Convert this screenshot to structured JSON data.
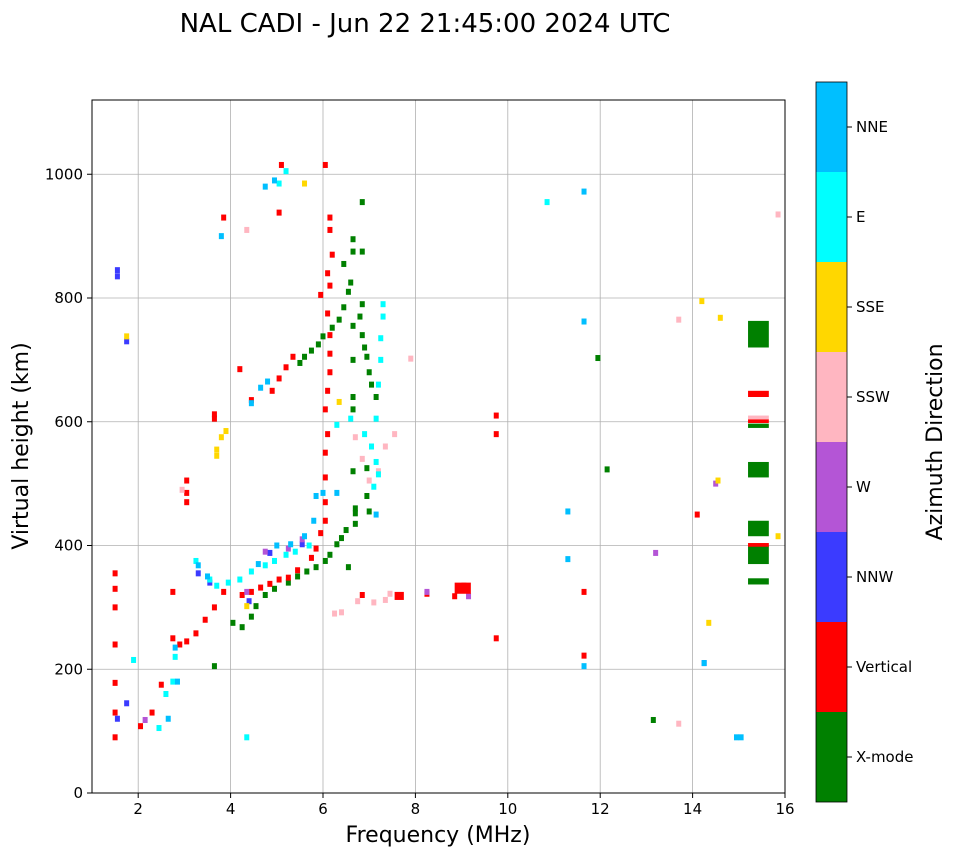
{
  "chart_data": {
    "type": "scatter",
    "title": "NAL CADI - Jun 22 21:45:00 2024 UTC",
    "xlabel": "Frequency (MHz)",
    "ylabel": "Virtual height (km)",
    "xlim": [
      1,
      16
    ],
    "ylim": [
      0,
      1120
    ],
    "xticks": [
      2,
      4,
      6,
      8,
      10,
      12,
      14,
      16
    ],
    "yticks": [
      0,
      200,
      400,
      600,
      800,
      1000
    ],
    "grid": true,
    "colorbar": {
      "label": "Azimuth Direction",
      "categories": [
        {
          "name": "X-mode",
          "color": "#008000"
        },
        {
          "name": "Vertical",
          "color": "#ff0000"
        },
        {
          "name": "NNW",
          "color": "#3b3bff"
        },
        {
          "name": "W",
          "color": "#b455d6"
        },
        {
          "name": "SSW",
          "color": "#ffb6c1"
        },
        {
          "name": "SSE",
          "color": "#ffd700"
        },
        {
          "name": "E",
          "color": "#00ffff"
        },
        {
          "name": "NNE",
          "color": "#00bfff"
        }
      ]
    },
    "series": [
      {
        "name": "X-mode",
        "points": [
          [
            3.65,
            205
          ],
          [
            4.05,
            275
          ],
          [
            4.25,
            268
          ],
          [
            4.45,
            285
          ],
          [
            4.55,
            302
          ],
          [
            4.75,
            320
          ],
          [
            4.95,
            330
          ],
          [
            5.25,
            340
          ],
          [
            5.45,
            350
          ],
          [
            5.65,
            358
          ],
          [
            5.85,
            365
          ],
          [
            6.05,
            375
          ],
          [
            6.15,
            385
          ],
          [
            6.3,
            402
          ],
          [
            6.4,
            412
          ],
          [
            6.5,
            425
          ],
          [
            6.55,
            365
          ],
          [
            5.5,
            695
          ],
          [
            5.6,
            705
          ],
          [
            5.75,
            715
          ],
          [
            5.9,
            725
          ],
          [
            6.0,
            738
          ],
          [
            6.2,
            752
          ],
          [
            6.35,
            765
          ],
          [
            6.45,
            785
          ],
          [
            6.55,
            810
          ],
          [
            6.6,
            825
          ],
          [
            6.45,
            855
          ],
          [
            6.65,
            875
          ],
          [
            6.65,
            895
          ],
          [
            6.85,
            955
          ],
          [
            6.85,
            875
          ],
          [
            6.85,
            790
          ],
          [
            6.8,
            770
          ],
          [
            6.65,
            755
          ],
          [
            6.85,
            740
          ],
          [
            6.9,
            720
          ],
          [
            6.65,
            700
          ],
          [
            6.95,
            705
          ],
          [
            7.0,
            680
          ],
          [
            7.05,
            660
          ],
          [
            7.15,
            640
          ],
          [
            6.65,
            640
          ],
          [
            6.65,
            620
          ],
          [
            6.65,
            520
          ],
          [
            6.95,
            525
          ],
          [
            6.95,
            480
          ],
          [
            6.7,
            452
          ],
          [
            6.7,
            435
          ],
          [
            6.7,
            460
          ],
          [
            7.0,
            455
          ],
          [
            13.15,
            118
          ],
          [
            12.15,
            523
          ],
          [
            11.95,
            703
          ]
        ]
      },
      {
        "name": "Vertical",
        "points": [
          [
            1.5,
            90
          ],
          [
            1.5,
            130
          ],
          [
            1.5,
            178
          ],
          [
            1.5,
            240
          ],
          [
            1.5,
            300
          ],
          [
            1.5,
            330
          ],
          [
            1.5,
            355
          ],
          [
            2.05,
            108
          ],
          [
            2.3,
            130
          ],
          [
            2.5,
            175
          ],
          [
            2.75,
            250
          ],
          [
            2.9,
            240
          ],
          [
            3.05,
            245
          ],
          [
            3.25,
            258
          ],
          [
            3.45,
            280
          ],
          [
            3.65,
            300
          ],
          [
            3.85,
            325
          ],
          [
            4.25,
            320
          ],
          [
            4.45,
            325
          ],
          [
            4.65,
            332
          ],
          [
            4.85,
            338
          ],
          [
            5.05,
            345
          ],
          [
            5.25,
            348
          ],
          [
            5.45,
            360
          ],
          [
            5.75,
            380
          ],
          [
            5.85,
            395
          ],
          [
            5.95,
            420
          ],
          [
            6.05,
            440
          ],
          [
            6.05,
            470
          ],
          [
            6.05,
            510
          ],
          [
            6.05,
            550
          ],
          [
            6.1,
            580
          ],
          [
            6.05,
            620
          ],
          [
            6.1,
            650
          ],
          [
            6.15,
            680
          ],
          [
            6.15,
            710
          ],
          [
            6.15,
            740
          ],
          [
            6.1,
            775
          ],
          [
            5.95,
            805
          ],
          [
            6.15,
            820
          ],
          [
            6.1,
            840
          ],
          [
            6.2,
            870
          ],
          [
            6.15,
            910
          ],
          [
            6.15,
            930
          ],
          [
            4.9,
            650
          ],
          [
            5.05,
            670
          ],
          [
            5.2,
            688
          ],
          [
            5.35,
            705
          ],
          [
            5.05,
            938
          ],
          [
            4.45,
            635
          ],
          [
            4.2,
            685
          ],
          [
            3.85,
            930
          ],
          [
            3.05,
            470
          ],
          [
            3.05,
            485
          ],
          [
            3.05,
            505
          ],
          [
            2.75,
            325
          ],
          [
            6.85,
            320
          ],
          [
            7.65,
            318
          ],
          [
            8.25,
            322
          ],
          [
            9.05,
            335
          ],
          [
            8.85,
            318
          ],
          [
            9.75,
            610
          ],
          [
            9.75,
            580
          ],
          [
            9.75,
            250
          ],
          [
            11.65,
            325
          ],
          [
            11.65,
            222
          ],
          [
            14.1,
            450
          ],
          [
            5.1,
            1015
          ],
          [
            6.05,
            1015
          ],
          [
            3.65,
            612
          ],
          [
            3.65,
            605
          ]
        ]
      },
      {
        "name": "NNW",
        "points": [
          [
            1.55,
            845
          ],
          [
            1.55,
            835
          ],
          [
            1.75,
            145
          ],
          [
            1.75,
            730
          ],
          [
            1.55,
            120
          ],
          [
            3.3,
            355
          ],
          [
            4.4,
            310
          ],
          [
            4.85,
            388
          ],
          [
            5.55,
            402
          ],
          [
            3.55,
            340
          ],
          [
            14.25,
            210
          ]
        ]
      },
      {
        "name": "W",
        "points": [
          [
            4.35,
            325
          ],
          [
            4.75,
            390
          ],
          [
            5.25,
            395
          ],
          [
            5.55,
            410
          ],
          [
            9.15,
            318
          ],
          [
            13.2,
            388
          ],
          [
            14.5,
            500
          ],
          [
            8.25,
            325
          ],
          [
            2.15,
            118
          ]
        ]
      },
      {
        "name": "SSW",
        "points": [
          [
            6.25,
            290
          ],
          [
            6.4,
            292
          ],
          [
            6.75,
            310
          ],
          [
            7.1,
            308
          ],
          [
            7.35,
            312
          ],
          [
            7.45,
            322
          ],
          [
            6.85,
            540
          ],
          [
            7.0,
            505
          ],
          [
            7.2,
            520
          ],
          [
            7.35,
            560
          ],
          [
            7.55,
            580
          ],
          [
            6.7,
            575
          ],
          [
            13.7,
            112
          ],
          [
            13.7,
            765
          ],
          [
            15.85,
            935
          ],
          [
            7.9,
            702
          ],
          [
            4.35,
            910
          ],
          [
            2.95,
            490
          ]
        ]
      },
      {
        "name": "SSE",
        "points": [
          [
            3.7,
            555
          ],
          [
            3.7,
            545
          ],
          [
            3.9,
            585
          ],
          [
            3.8,
            575
          ],
          [
            6.35,
            632
          ],
          [
            14.2,
            795
          ],
          [
            14.6,
            768
          ],
          [
            14.35,
            275
          ],
          [
            15.85,
            415
          ],
          [
            14.55,
            505
          ],
          [
            5.6,
            985
          ],
          [
            4.35,
            302
          ],
          [
            1.75,
            738
          ]
        ]
      },
      {
        "name": "E",
        "points": [
          [
            2.45,
            105
          ],
          [
            2.6,
            160
          ],
          [
            2.75,
            180
          ],
          [
            2.8,
            220
          ],
          [
            3.25,
            375
          ],
          [
            3.55,
            345
          ],
          [
            3.7,
            335
          ],
          [
            3.95,
            340
          ],
          [
            4.2,
            345
          ],
          [
            4.45,
            358
          ],
          [
            4.75,
            368
          ],
          [
            4.95,
            375
          ],
          [
            5.2,
            385
          ],
          [
            5.4,
            390
          ],
          [
            5.7,
            400
          ],
          [
            6.3,
            595
          ],
          [
            6.6,
            605
          ],
          [
            6.9,
            580
          ],
          [
            7.05,
            560
          ],
          [
            7.15,
            535
          ],
          [
            7.2,
            515
          ],
          [
            7.1,
            495
          ],
          [
            7.15,
            605
          ],
          [
            7.2,
            660
          ],
          [
            7.25,
            700
          ],
          [
            7.25,
            735
          ],
          [
            7.3,
            770
          ],
          [
            7.3,
            790
          ],
          [
            5.2,
            1005
          ],
          [
            5.05,
            985
          ],
          [
            4.35,
            90
          ],
          [
            1.9,
            215
          ],
          [
            10.85,
            955
          ]
        ]
      },
      {
        "name": "NNE",
        "points": [
          [
            2.65,
            120
          ],
          [
            2.85,
            180
          ],
          [
            2.8,
            235
          ],
          [
            3.3,
            368
          ],
          [
            3.5,
            350
          ],
          [
            4.6,
            370
          ],
          [
            5.0,
            400
          ],
          [
            5.3,
            402
          ],
          [
            5.6,
            415
          ],
          [
            5.8,
            440
          ],
          [
            5.85,
            480
          ],
          [
            6.0,
            485
          ],
          [
            6.3,
            485
          ],
          [
            4.45,
            630
          ],
          [
            4.65,
            655
          ],
          [
            4.8,
            665
          ],
          [
            4.75,
            980
          ],
          [
            4.95,
            990
          ],
          [
            3.8,
            900
          ],
          [
            11.3,
            455
          ],
          [
            11.3,
            378
          ],
          [
            11.65,
            762
          ],
          [
            11.65,
            972
          ],
          [
            11.65,
            205
          ],
          [
            14.25,
            210
          ],
          [
            14.95,
            90
          ],
          [
            15.05,
            90
          ],
          [
            7.15,
            450
          ]
        ]
      }
    ],
    "boxes": [
      {
        "series": "X-mode",
        "x": [
          15.2,
          15.65
        ],
        "y": [
          720,
          763
        ]
      },
      {
        "series": "X-mode",
        "x": [
          15.2,
          15.65
        ],
        "y": [
          510,
          535
        ]
      },
      {
        "series": "X-mode",
        "x": [
          15.2,
          15.65
        ],
        "y": [
          415,
          440
        ]
      },
      {
        "series": "X-mode",
        "x": [
          15.2,
          15.65
        ],
        "y": [
          370,
          400
        ]
      },
      {
        "series": "X-mode",
        "x": [
          15.2,
          15.65
        ],
        "y": [
          337,
          347
        ]
      },
      {
        "series": "X-mode",
        "x": [
          15.2,
          15.65
        ],
        "y": [
          590,
          597
        ]
      },
      {
        "series": "Vertical",
        "x": [
          15.2,
          15.65
        ],
        "y": [
          640,
          650
        ]
      },
      {
        "series": "Vertical",
        "x": [
          15.2,
          15.65
        ],
        "y": [
          598,
          604
        ]
      },
      {
        "series": "Vertical",
        "x": [
          15.2,
          15.65
        ],
        "y": [
          398,
          404
        ]
      },
      {
        "series": "SSW",
        "x": [
          15.2,
          15.65
        ],
        "y": [
          604,
          610
        ]
      },
      {
        "series": "Vertical",
        "x": [
          8.85,
          9.2
        ],
        "y": [
          322,
          340
        ]
      },
      {
        "series": "Vertical",
        "x": [
          7.55,
          7.75
        ],
        "y": [
          312,
          325
        ]
      }
    ]
  }
}
